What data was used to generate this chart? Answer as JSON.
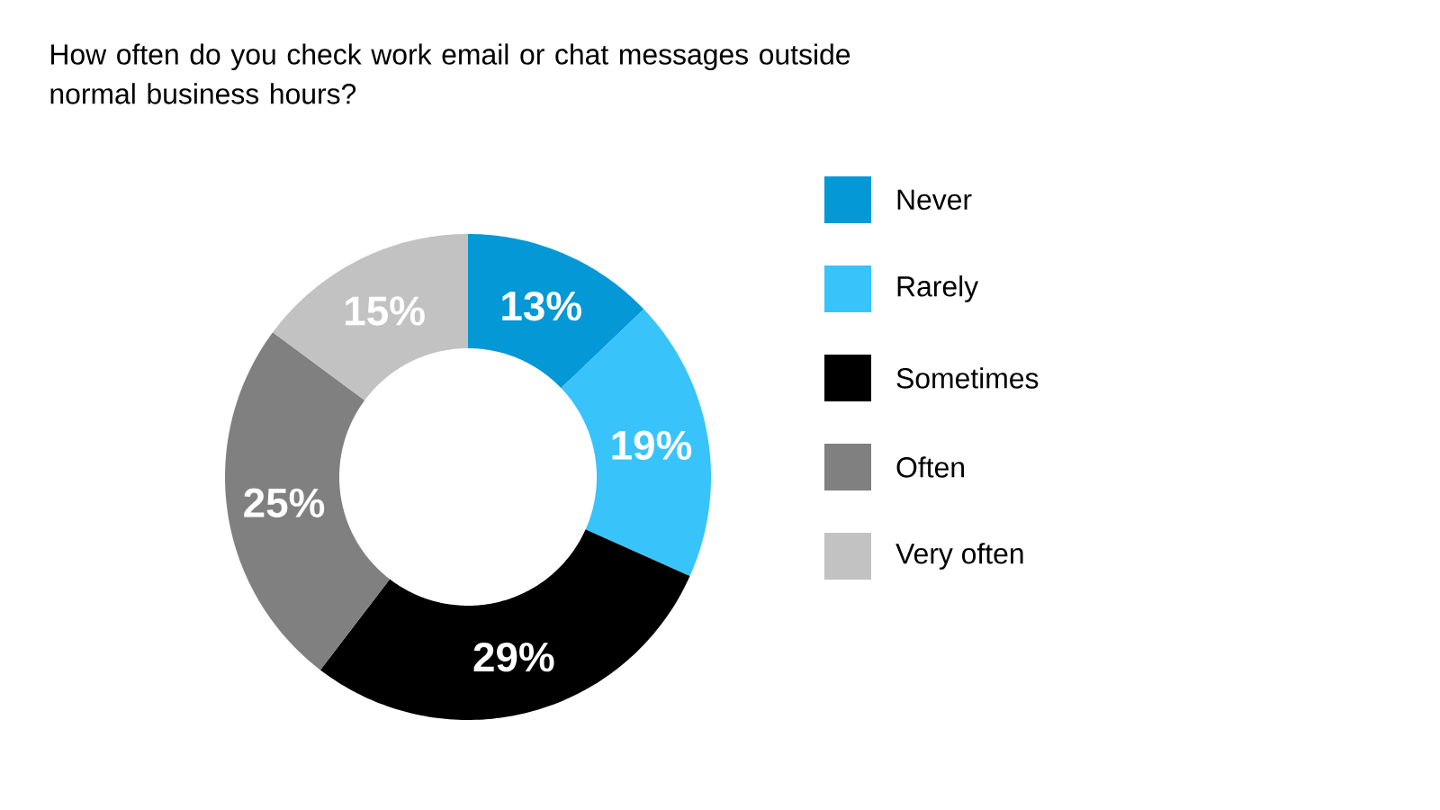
{
  "chart_data": {
    "type": "donut",
    "title": "How often do you check work email or chat messages outside normal business hours?",
    "categories": [
      "Never",
      "Rarely",
      "Sometimes",
      "Often",
      "Very often"
    ],
    "values": [
      13,
      19,
      29,
      25,
      15
    ],
    "value_labels": [
      "13%",
      "19%",
      "29%",
      "25%",
      "15%"
    ],
    "colors": [
      "#0498d6",
      "#38c4fb",
      "#000000",
      "#808080",
      "#c2c2c2"
    ],
    "legend": "right"
  }
}
